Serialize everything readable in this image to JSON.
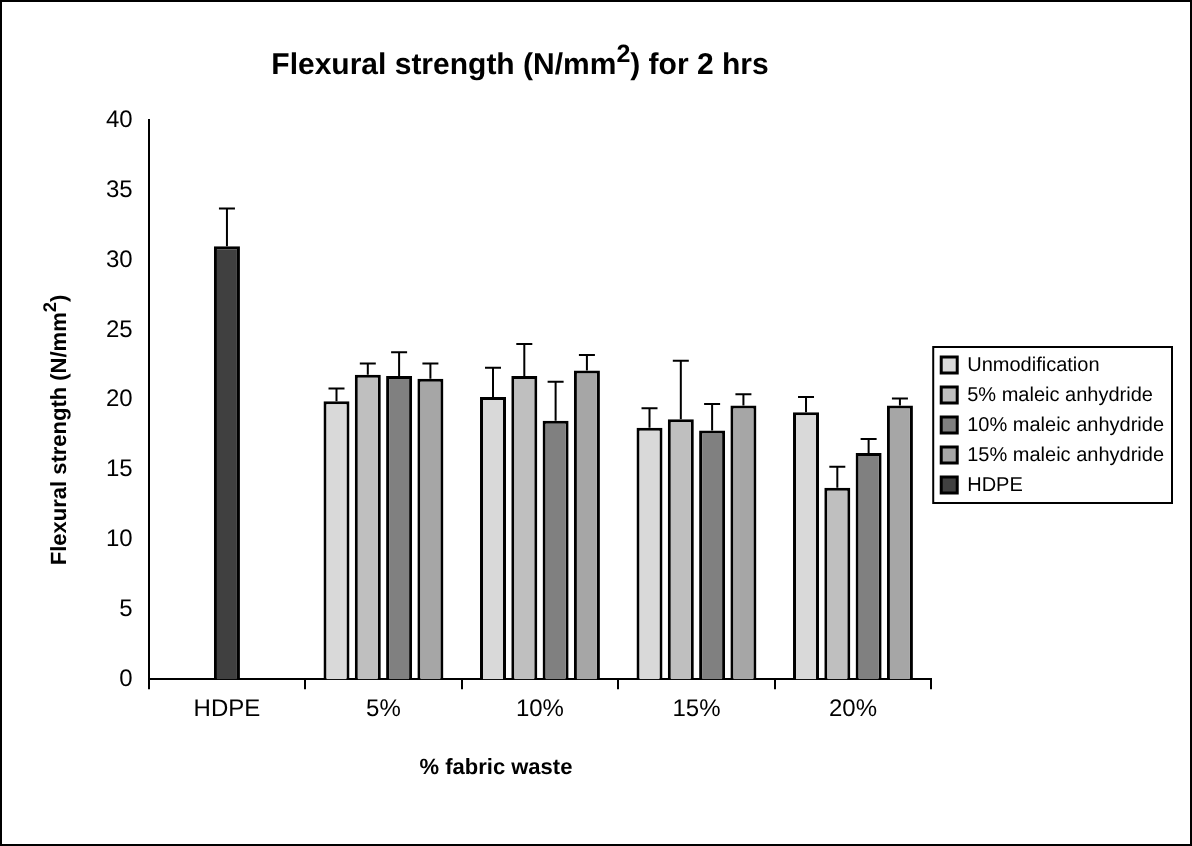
{
  "chart_data": {
    "type": "bar",
    "title": "Flexural strength (N/mm$^{2}$) for 2 hrs",
    "xlabel": "% fabric waste",
    "ylabel": "Flexural strength (N/mm$^{2}$)",
    "categories": [
      "HDPE",
      "5%",
      "10%",
      "15%",
      "20%"
    ],
    "series": [
      {
        "name": "Unmodification",
        "color": "#d9d9d9",
        "values": [
          null,
          19.9,
          20.2,
          18.0,
          19.1
        ],
        "errors": [
          null,
          0.9,
          2.1,
          1.4,
          1.1
        ]
      },
      {
        "name": "5% maleic anhydride",
        "color": "#bfbfbf",
        "values": [
          null,
          21.8,
          21.7,
          18.6,
          13.7
        ],
        "errors": [
          null,
          0.8,
          2.3,
          4.2,
          1.5
        ]
      },
      {
        "name": "10% maleic anhydride",
        "color": "#808080",
        "values": [
          null,
          21.7,
          18.5,
          17.8,
          16.2
        ],
        "errors": [
          null,
          1.7,
          2.8,
          1.9,
          1.0
        ]
      },
      {
        "name": "15% maleic anhydride",
        "color": "#a6a6a6",
        "values": [
          null,
          21.5,
          22.1,
          19.6,
          19.6
        ],
        "errors": [
          null,
          1.1,
          1.1,
          0.8,
          0.5
        ]
      },
      {
        "name": "HDPE",
        "color": "#404040",
        "values": [
          31.0,
          null,
          null,
          null,
          null
        ],
        "errors": [
          2.7,
          null,
          null,
          null,
          null
        ]
      }
    ],
    "ylim": [
      0,
      40
    ],
    "yticks": [
      0,
      5,
      10,
      15,
      20,
      25,
      30,
      35,
      40
    ],
    "legend": "right"
  }
}
